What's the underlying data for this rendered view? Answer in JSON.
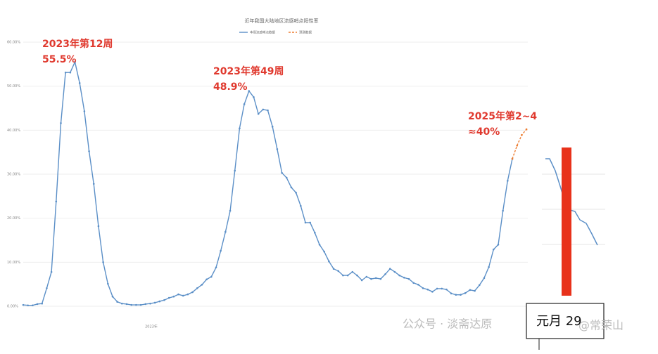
{
  "chart_data": {
    "type": "line",
    "title": "近年我国大陆地区流感哨点阳性率",
    "ylim": [
      0,
      60
    ],
    "yticks": [
      {
        "value": 0,
        "label": "0.00%"
      },
      {
        "value": 10,
        "label": "10.00%"
      },
      {
        "value": 20,
        "label": "20.00%"
      },
      {
        "value": 30,
        "label": "30.00%"
      },
      {
        "value": 40,
        "label": "40.00%"
      },
      {
        "value": 50,
        "label": "50.00%"
      },
      {
        "value": 60,
        "label": "60.00%"
      }
    ],
    "grid": true,
    "series": [
      {
        "name": "本周流感哨点数据",
        "color": "#5b8fc7",
        "dash": false,
        "values": [
          0.3,
          0.2,
          0.2,
          0.5,
          0.6,
          4.1,
          7.8,
          23.8,
          41.6,
          53.1,
          53.1,
          55.5,
          50.7,
          44.3,
          35.2,
          27.8,
          18.2,
          10.0,
          5.1,
          2.2,
          1.0,
          0.6,
          0.5,
          0.3,
          0.3,
          0.3,
          0.5,
          0.6,
          0.8,
          1.1,
          1.4,
          1.9,
          2.2,
          2.7,
          2.4,
          2.7,
          3.2,
          4.1,
          4.9,
          6.1,
          6.7,
          8.8,
          12.6,
          16.9,
          21.7,
          30.8,
          40.4,
          45.9,
          48.9,
          47.5,
          43.7,
          44.7,
          44.5,
          40.8,
          35.7,
          30.3,
          29.2,
          27.0,
          25.8,
          22.8,
          19.0,
          19.0,
          16.7,
          14.0,
          12.4,
          10.2,
          8.5,
          8.0,
          7.0,
          7.0,
          7.8,
          7.0,
          5.9,
          6.7,
          6.2,
          6.4,
          6.2,
          7.3,
          8.5,
          7.8,
          7.0,
          6.5,
          6.2,
          5.3,
          4.9,
          4.1,
          3.8,
          3.3,
          4.0,
          4.0,
          3.8,
          2.9,
          2.6,
          2.6,
          3.0,
          3.7,
          3.5,
          4.8,
          6.4,
          8.9,
          12.9,
          14.0,
          21.7,
          28.5,
          33.5,
          null,
          null,
          null
        ]
      },
      {
        "name": "预测数据",
        "color": "#ed7d31",
        "dash": true,
        "values": [
          null,
          null,
          null,
          null,
          null,
          null,
          null,
          null,
          null,
          null,
          null,
          null,
          null,
          null,
          null,
          null,
          null,
          null,
          null,
          null,
          null,
          null,
          null,
          null,
          null,
          null,
          null,
          null,
          null,
          null,
          null,
          null,
          null,
          null,
          null,
          null,
          null,
          null,
          null,
          null,
          null,
          null,
          null,
          null,
          null,
          null,
          null,
          null,
          null,
          null,
          null,
          null,
          null,
          null,
          null,
          null,
          null,
          null,
          null,
          null,
          null,
          null,
          null,
          null,
          null,
          null,
          null,
          null,
          null,
          null,
          null,
          null,
          null,
          null,
          null,
          null,
          null,
          null,
          null,
          null,
          null,
          null,
          null,
          null,
          null,
          null,
          null,
          null,
          null,
          null,
          null,
          null,
          null,
          null,
          null,
          null,
          null,
          null,
          null,
          null,
          null,
          null,
          null,
          null,
          33.5,
          36.5,
          38.9,
          40.2
        ]
      }
    ],
    "annotations": [
      {
        "lines": [
          "2023年第12周",
          "55.5%"
        ],
        "color": "#e03a2f"
      },
      {
        "lines": [
          "2023年第49周",
          "48.9%"
        ],
        "color": "#e03a2f"
      },
      {
        "lines": [
          "2025年第2~4",
          "≈40%"
        ],
        "color": "#e03a2f"
      }
    ],
    "x_axis_label": "2023年",
    "watermarks": [
      "公众号 · 淡斋达原",
      "@常荣山"
    ],
    "box_text": "元月 29"
  }
}
